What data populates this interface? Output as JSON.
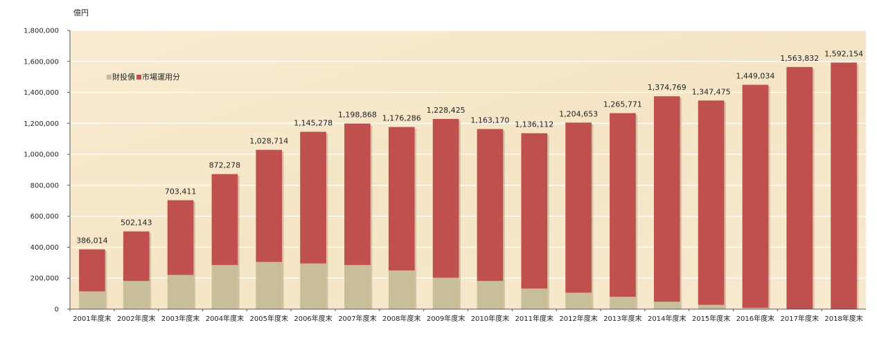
{
  "chart_data": {
    "type": "bar",
    "stacked": true,
    "unit_label": "億円",
    "categories": [
      "2001年度末",
      "2002年度末",
      "2003年度末",
      "2004年度末",
      "2005年度末",
      "2006年度末",
      "2007年度末",
      "2008年度末",
      "2009年度末",
      "2010年度末",
      "2011年度末",
      "2012年度末",
      "2013年度末",
      "2014年度末",
      "2015年度末",
      "2016年度末",
      "2017年度末",
      "2018年度末"
    ],
    "series": [
      {
        "name": "財投債",
        "color": "#c8bf9a",
        "values": [
          115000,
          182000,
          221000,
          285000,
          305000,
          295000,
          285000,
          250000,
          203000,
          182000,
          133000,
          106000,
          80000,
          48000,
          28000,
          9000,
          0,
          0
        ]
      },
      {
        "name": "市場運用分",
        "color": "#c0504d",
        "values": [
          271014,
          320143,
          482411,
          587278,
          723714,
          850278,
          913868,
          926286,
          1025425,
          981170,
          1003112,
          1098653,
          1185771,
          1326769,
          1319475,
          1440034,
          1563832,
          1592154
        ]
      }
    ],
    "totals": [
      386014,
      502143,
      703411,
      872278,
      1028714,
      1145278,
      1198868,
      1176286,
      1228425,
      1163170,
      1136112,
      1204653,
      1265771,
      1374769,
      1347475,
      1449034,
      1563832,
      1592154
    ],
    "total_labels": [
      "386,014",
      "502,143",
      "703,411",
      "872,278",
      "1,028,714",
      "1,145,278",
      "1,198,868",
      "1,176,286",
      "1,228,425",
      "1,163,170",
      "1,136,112",
      "1,204,653",
      "1,265,771",
      "1,374,769",
      "1,347,475",
      "1,449,034",
      "1,563,832",
      "1,592,154"
    ],
    "ylim": [
      0,
      1800000
    ],
    "yticks": [
      0,
      200000,
      400000,
      600000,
      800000,
      1000000,
      1200000,
      1400000,
      1600000,
      1800000
    ],
    "ytick_labels": [
      "0",
      "200,000",
      "400,000",
      "600,000",
      "800,000",
      "1,000,000",
      "1,200,000",
      "1,400,000",
      "1,600,000",
      "1,800,000"
    ],
    "legend_position": "top-left",
    "grid": true
  }
}
